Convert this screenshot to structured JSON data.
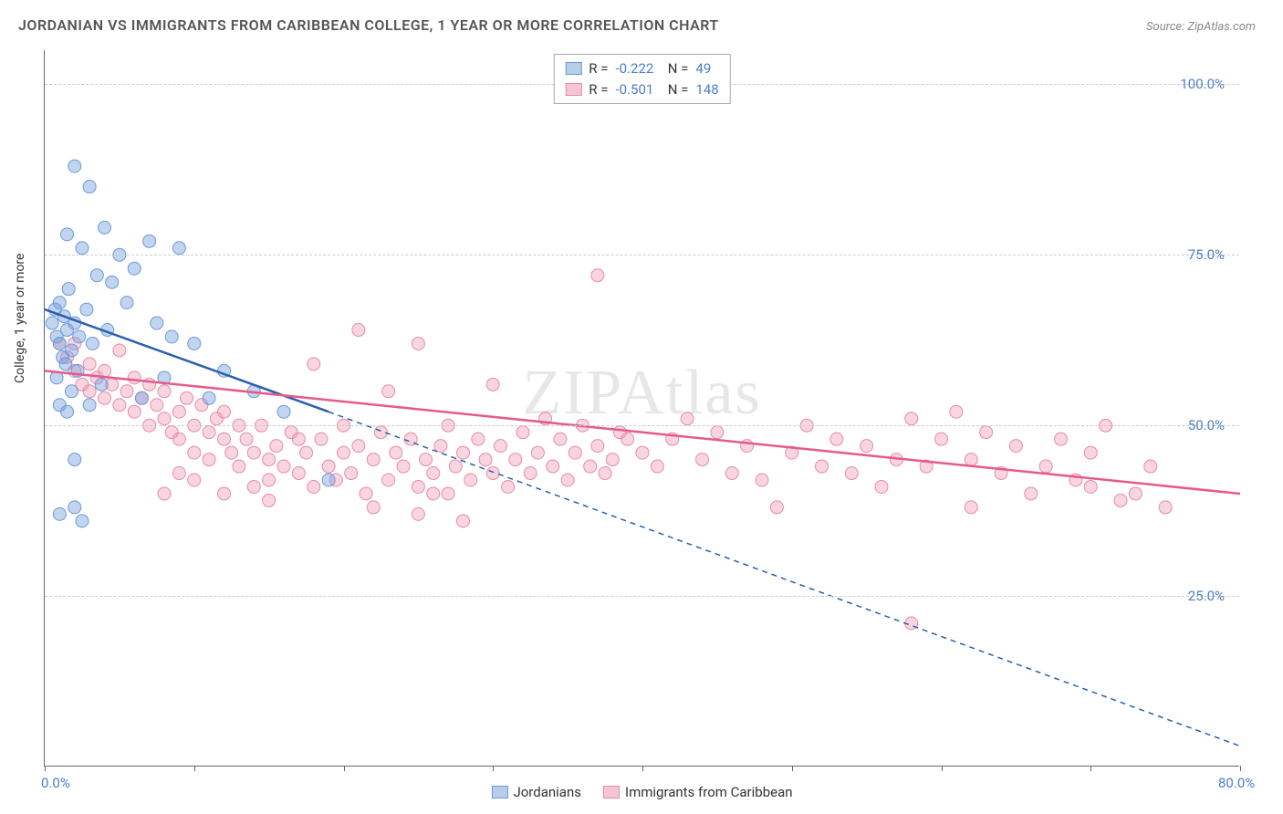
{
  "title": "JORDANIAN VS IMMIGRANTS FROM CARIBBEAN COLLEGE, 1 YEAR OR MORE CORRELATION CHART",
  "source": "Source: ZipAtlas.com",
  "ylabel": "College, 1 year or more",
  "watermark": "ZIPAtlas",
  "chart": {
    "type": "scatter",
    "xlim": [
      0,
      80
    ],
    "ylim": [
      0,
      105
    ],
    "x_ticks": [
      0,
      10,
      20,
      30,
      40,
      50,
      60,
      70,
      80
    ],
    "x_tick_labels_show": [
      0,
      80
    ],
    "y_gridlines": [
      25,
      50,
      75,
      100
    ],
    "y_tick_labels": [
      "25.0%",
      "50.0%",
      "75.0%",
      "100.0%"
    ],
    "x_tick_label_left": "0.0%",
    "x_tick_label_right": "80.0%",
    "grid_color": "#cccccc",
    "background_color": "#ffffff",
    "axis_color": "#666666",
    "tick_label_color": "#4a7ec9"
  },
  "series": [
    {
      "name": "Jordanians",
      "color_fill": "rgba(120,160,220,0.45)",
      "color_stroke": "#6a9bd8",
      "trend_color": "#2a5fb0",
      "legend_swatch_fill": "#b7cdea",
      "legend_swatch_border": "#6a9bd8",
      "R": "-0.222",
      "N": "49",
      "trend_solid": {
        "x1": 0,
        "y1": 67,
        "x2": 19,
        "y2": 52
      },
      "trend_dashed": {
        "x1": 19,
        "y1": 52,
        "x2": 80,
        "y2": 3
      },
      "points": [
        [
          0.5,
          65
        ],
        [
          0.7,
          67
        ],
        [
          0.8,
          63
        ],
        [
          1,
          62
        ],
        [
          1,
          68
        ],
        [
          1.2,
          60
        ],
        [
          1.3,
          66
        ],
        [
          1.4,
          59
        ],
        [
          1.5,
          78
        ],
        [
          1.5,
          64
        ],
        [
          1.6,
          70
        ],
        [
          1.8,
          61
        ],
        [
          2,
          88
        ],
        [
          2,
          65
        ],
        [
          2.2,
          58
        ],
        [
          2.3,
          63
        ],
        [
          2.5,
          76
        ],
        [
          2.8,
          67
        ],
        [
          3,
          85
        ],
        [
          3.2,
          62
        ],
        [
          3.5,
          72
        ],
        [
          3.8,
          56
        ],
        [
          4,
          79
        ],
        [
          4.2,
          64
        ],
        [
          4.5,
          71
        ],
        [
          5,
          75
        ],
        [
          5.5,
          68
        ],
        [
          6,
          73
        ],
        [
          6.5,
          54
        ],
        [
          7,
          77
        ],
        [
          7.5,
          65
        ],
        [
          8,
          57
        ],
        [
          8.5,
          63
        ],
        [
          9,
          76
        ],
        [
          1,
          53
        ],
        [
          1.5,
          52
        ],
        [
          2,
          45
        ],
        [
          2,
          38
        ],
        [
          3,
          53
        ],
        [
          10,
          62
        ],
        [
          11,
          54
        ],
        [
          12,
          58
        ],
        [
          14,
          55
        ],
        [
          16,
          52
        ],
        [
          19,
          42
        ],
        [
          1,
          37
        ],
        [
          2.5,
          36
        ],
        [
          0.8,
          57
        ],
        [
          1.8,
          55
        ]
      ]
    },
    {
      "name": "Immigrants from Caribbean",
      "color_fill": "rgba(240,150,175,0.4)",
      "color_stroke": "#e98aa8",
      "trend_color": "#e65a8a",
      "legend_swatch_fill": "#f4c6d3",
      "legend_swatch_border": "#e98aa8",
      "R": "-0.501",
      "N": "148",
      "trend_solid": {
        "x1": 0,
        "y1": 58,
        "x2": 80,
        "y2": 40
      },
      "trend_dashed": null,
      "points": [
        [
          1,
          62
        ],
        [
          1.5,
          60
        ],
        [
          2,
          58
        ],
        [
          2,
          62
        ],
        [
          2.5,
          56
        ],
        [
          3,
          59
        ],
        [
          3,
          55
        ],
        [
          3.5,
          57
        ],
        [
          4,
          54
        ],
        [
          4,
          58
        ],
        [
          4.5,
          56
        ],
        [
          5,
          53
        ],
        [
          5,
          61
        ],
        [
          5.5,
          55
        ],
        [
          6,
          52
        ],
        [
          6,
          57
        ],
        [
          6.5,
          54
        ],
        [
          7,
          50
        ],
        [
          7,
          56
        ],
        [
          7.5,
          53
        ],
        [
          8,
          51
        ],
        [
          8,
          55
        ],
        [
          8.5,
          49
        ],
        [
          9,
          52
        ],
        [
          9,
          48
        ],
        [
          9.5,
          54
        ],
        [
          10,
          50
        ],
        [
          10,
          46
        ],
        [
          10.5,
          53
        ],
        [
          11,
          49
        ],
        [
          11,
          45
        ],
        [
          11.5,
          51
        ],
        [
          12,
          48
        ],
        [
          12,
          52
        ],
        [
          12.5,
          46
        ],
        [
          13,
          50
        ],
        [
          13,
          44
        ],
        [
          13.5,
          48
        ],
        [
          14,
          46
        ],
        [
          14.5,
          50
        ],
        [
          15,
          45
        ],
        [
          15,
          42
        ],
        [
          15.5,
          47
        ],
        [
          16,
          44
        ],
        [
          16.5,
          49
        ],
        [
          17,
          43
        ],
        [
          17.5,
          46
        ],
        [
          18,
          41
        ],
        [
          18,
          59
        ],
        [
          18.5,
          48
        ],
        [
          19,
          44
        ],
        [
          19.5,
          42
        ],
        [
          20,
          46
        ],
        [
          20,
          50
        ],
        [
          20.5,
          43
        ],
        [
          21,
          64
        ],
        [
          21,
          47
        ],
        [
          21.5,
          40
        ],
        [
          22,
          45
        ],
        [
          22.5,
          49
        ],
        [
          23,
          42
        ],
        [
          23,
          55
        ],
        [
          23.5,
          46
        ],
        [
          24,
          44
        ],
        [
          24.5,
          48
        ],
        [
          25,
          41
        ],
        [
          25,
          62
        ],
        [
          25.5,
          45
        ],
        [
          26,
          43
        ],
        [
          26.5,
          47
        ],
        [
          27,
          40
        ],
        [
          27,
          50
        ],
        [
          27.5,
          44
        ],
        [
          28,
          46
        ],
        [
          28.5,
          42
        ],
        [
          29,
          48
        ],
        [
          29.5,
          45
        ],
        [
          30,
          43
        ],
        [
          30,
          56
        ],
        [
          30.5,
          47
        ],
        [
          31,
          41
        ],
        [
          31.5,
          45
        ],
        [
          32,
          49
        ],
        [
          32.5,
          43
        ],
        [
          33,
          46
        ],
        [
          33.5,
          51
        ],
        [
          34,
          44
        ],
        [
          34.5,
          48
        ],
        [
          35,
          42
        ],
        [
          35.5,
          46
        ],
        [
          36,
          50
        ],
        [
          36.5,
          44
        ],
        [
          37,
          47
        ],
        [
          37,
          72
        ],
        [
          37.5,
          43
        ],
        [
          38,
          45
        ],
        [
          38.5,
          49
        ],
        [
          39,
          48
        ],
        [
          40,
          46
        ],
        [
          41,
          44
        ],
        [
          42,
          48
        ],
        [
          43,
          51
        ],
        [
          44,
          45
        ],
        [
          45,
          49
        ],
        [
          46,
          43
        ],
        [
          47,
          47
        ],
        [
          48,
          42
        ],
        [
          49,
          38
        ],
        [
          50,
          46
        ],
        [
          51,
          50
        ],
        [
          52,
          44
        ],
        [
          53,
          48
        ],
        [
          54,
          43
        ],
        [
          55,
          47
        ],
        [
          56,
          41
        ],
        [
          57,
          45
        ],
        [
          58,
          51
        ],
        [
          59,
          44
        ],
        [
          60,
          48
        ],
        [
          61,
          52
        ],
        [
          62,
          45
        ],
        [
          63,
          49
        ],
        [
          64,
          43
        ],
        [
          65,
          47
        ],
        [
          66,
          40
        ],
        [
          67,
          44
        ],
        [
          68,
          48
        ],
        [
          69,
          42
        ],
        [
          70,
          46
        ],
        [
          71,
          50
        ],
        [
          72,
          39
        ],
        [
          73,
          40
        ],
        [
          74,
          44
        ],
        [
          75,
          38
        ],
        [
          62,
          38
        ],
        [
          58,
          21
        ],
        [
          12,
          40
        ],
        [
          14,
          41
        ],
        [
          22,
          38
        ],
        [
          25,
          37
        ],
        [
          26,
          40
        ],
        [
          28,
          36
        ],
        [
          8,
          40
        ],
        [
          9,
          43
        ],
        [
          10,
          42
        ],
        [
          15,
          39
        ],
        [
          17,
          48
        ],
        [
          70,
          41
        ]
      ]
    }
  ],
  "legend_bottom": [
    {
      "label": "Jordanians",
      "fill": "#b7cdea",
      "border": "#6a9bd8"
    },
    {
      "label": "Immigrants from Caribbean",
      "fill": "#f4c6d3",
      "border": "#e98aa8"
    }
  ]
}
